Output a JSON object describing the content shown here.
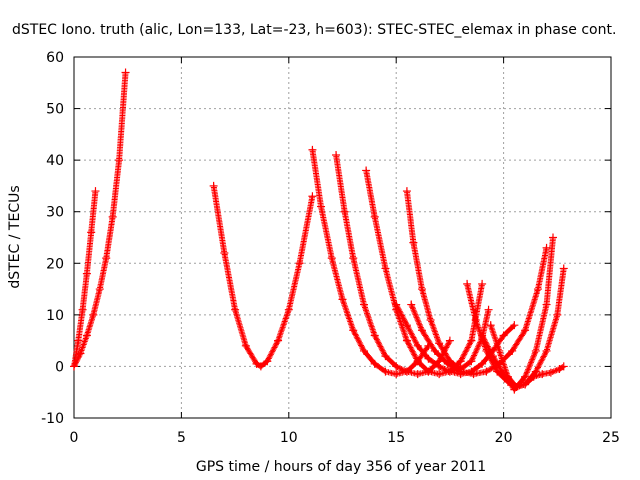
{
  "chart_data": {
    "type": "scatter",
    "title": "dSTEC Iono. truth (alic, Lon=133, Lat=-23, h=603): STEC-STEC_elemax in phase cont.",
    "xlabel": "GPS time / hours of day 356 of year 2011",
    "ylabel": "dSTEC  / TECUs",
    "xlim": [
      0,
      25
    ],
    "ylim": [
      -10,
      60
    ],
    "xticks": [
      0,
      5,
      10,
      15,
      20,
      25
    ],
    "yticks": [
      -10,
      0,
      10,
      20,
      30,
      40,
      50,
      60
    ],
    "xtick_labels": [
      "0",
      "5",
      "10",
      "15",
      "20",
      "25"
    ],
    "ytick_labels": [
      "-10",
      "0",
      "10",
      "20",
      "30",
      "40",
      "50",
      "60"
    ],
    "grid": true,
    "legend": "none",
    "marker": "plus",
    "color": "#ff0000",
    "series": [
      {
        "x": [
          0.0,
          0.2,
          0.4,
          0.6,
          0.8,
          1.0
        ],
        "y": [
          0.0,
          5.0,
          11.0,
          18.0,
          26.0,
          34.0
        ]
      },
      {
        "x": [
          0.0,
          0.3,
          0.6,
          0.9,
          1.2,
          1.5,
          1.8,
          2.1,
          2.4
        ],
        "y": [
          0.0,
          2.5,
          6.0,
          10.0,
          15.0,
          21.0,
          29.0,
          40.0,
          57.0
        ]
      },
      {
        "x": [
          6.5,
          7.0,
          7.5,
          8.0,
          8.5,
          8.7,
          9.0,
          9.5,
          10.0,
          10.5,
          11.1
        ],
        "y": [
          35.0,
          22.0,
          11.0,
          4.0,
          0.5,
          0.0,
          1.0,
          5.0,
          11.0,
          20.0,
          33.0
        ]
      },
      {
        "x": [
          11.1,
          11.5,
          12.0,
          12.5,
          13.0,
          13.5,
          14.0,
          14.5,
          15.0,
          15.5,
          16.0,
          16.5
        ],
        "y": [
          42.0,
          31.0,
          21.0,
          13.0,
          7.0,
          3.0,
          0.5,
          -1.0,
          -1.5,
          -1.0,
          1.0,
          4.0
        ]
      },
      {
        "x": [
          12.2,
          12.6,
          13.0,
          13.5,
          14.0,
          14.5,
          15.0,
          15.5,
          16.0,
          16.5,
          17.0,
          17.5
        ],
        "y": [
          41.0,
          30.0,
          21.0,
          12.0,
          6.0,
          2.0,
          0.0,
          -1.0,
          -1.5,
          -1.0,
          1.0,
          5.0
        ]
      },
      {
        "x": [
          13.6,
          14.0,
          14.5,
          15.0,
          15.5,
          16.0,
          16.5,
          17.0,
          17.5,
          18.0,
          18.5,
          19.0
        ],
        "y": [
          38.0,
          29.0,
          19.0,
          11.0,
          5.0,
          1.0,
          -1.0,
          -1.5,
          -1.0,
          1.0,
          5.0,
          16.0
        ]
      },
      {
        "x": [
          15.5,
          15.8,
          16.2,
          16.6,
          17.0,
          17.5,
          18.0,
          18.5,
          19.0,
          19.3
        ],
        "y": [
          34.0,
          24.0,
          15.0,
          9.0,
          4.5,
          1.0,
          -0.5,
          1.0,
          5.5,
          11.0
        ]
      },
      {
        "x": [
          15.0,
          15.5,
          16.0,
          16.5,
          17.0,
          17.5,
          18.0,
          18.5,
          19.0,
          19.5,
          20.0,
          20.5
        ],
        "y": [
          12.0,
          8.0,
          4.0,
          1.5,
          0.0,
          -1.0,
          -1.5,
          -1.0,
          0.5,
          3.0,
          6.0,
          8.0
        ]
      },
      {
        "x": [
          15.7,
          16.2,
          16.8,
          17.4,
          18.0,
          18.6,
          19.2,
          19.8,
          20.4,
          21.0,
          21.6,
          22.0
        ],
        "y": [
          12.0,
          7.0,
          3.0,
          0.5,
          -1.0,
          -1.5,
          -1.0,
          0.5,
          3.0,
          7.0,
          15.0,
          23.0
        ]
      },
      {
        "x": [
          18.3,
          18.7,
          19.2,
          19.7,
          20.2,
          20.6,
          21.0,
          21.5,
          22.0,
          22.5,
          22.8
        ],
        "y": [
          16.0,
          9.0,
          3.0,
          -1.0,
          -3.0,
          -4.0,
          -3.5,
          -1.0,
          3.0,
          10.0,
          19.0
        ]
      },
      {
        "x": [
          19.4,
          19.8,
          20.2,
          20.6,
          21.0,
          21.4,
          21.8,
          22.2,
          22.6,
          22.8
        ],
        "y": [
          8.0,
          3.0,
          -2.0,
          -4.0,
          -3.5,
          -2.0,
          -1.5,
          -1.2,
          -0.5,
          0.0
        ]
      },
      {
        "x": [
          19.0,
          19.5,
          20.0,
          20.5,
          21.0,
          21.5,
          22.0,
          22.3
        ],
        "y": [
          6.0,
          2.0,
          -1.5,
          -4.5,
          -2.0,
          3.0,
          12.0,
          25.0
        ]
      }
    ]
  }
}
